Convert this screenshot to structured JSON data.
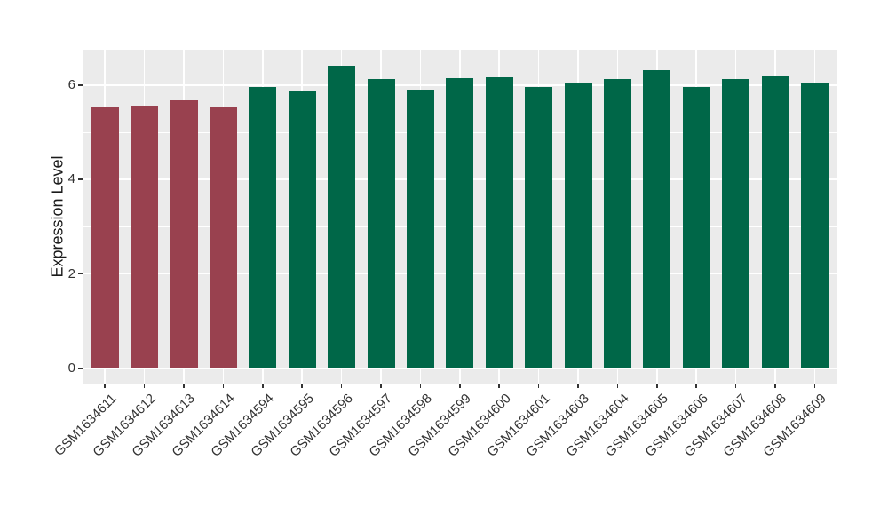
{
  "figure": {
    "background_color": "#ffffff",
    "panel_background_color": "#EBEBEB",
    "gridline_color": "#ffffff",
    "tick_color": "#333333",
    "axis_text_color": "#333333",
    "axis_title_color": "#1a1a1a"
  },
  "chart_data": {
    "type": "bar",
    "title": "",
    "xlabel": "",
    "ylabel": "Expression Level",
    "categories": [
      "GSM1634611",
      "GSM1634612",
      "GSM1634613",
      "GSM1634614",
      "GSM1634594",
      "GSM1634595",
      "GSM1634596",
      "GSM1634597",
      "GSM1634598",
      "GSM1634599",
      "GSM1634600",
      "GSM1634601",
      "GSM1634603",
      "GSM1634604",
      "GSM1634605",
      "GSM1634606",
      "GSM1634607",
      "GSM1634608",
      "GSM1634609"
    ],
    "values": [
      5.53,
      5.56,
      5.67,
      5.54,
      5.96,
      5.89,
      6.41,
      6.13,
      5.9,
      6.14,
      6.17,
      5.96,
      6.06,
      6.12,
      6.32,
      5.96,
      6.13,
      6.18,
      6.06
    ],
    "bar_colors": [
      "#99414F",
      "#99414F",
      "#99414F",
      "#99414F",
      "#006748",
      "#006748",
      "#006748",
      "#006748",
      "#006748",
      "#006748",
      "#006748",
      "#006748",
      "#006748",
      "#006748",
      "#006748",
      "#006748",
      "#006748",
      "#006748",
      "#006748"
    ],
    "palette": [
      "#99414F",
      "#006748"
    ],
    "ylim": [
      0,
      6.75
    ],
    "yticks": [
      0,
      2,
      4,
      6
    ],
    "yticks_minor": [
      1,
      3,
      5
    ],
    "grid": true,
    "legend": null,
    "x_tick_rotation": 45
  }
}
